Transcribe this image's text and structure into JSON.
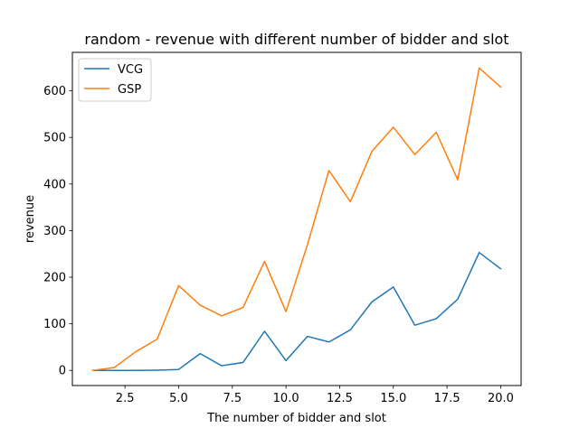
{
  "chart_data": {
    "type": "line",
    "title": "random - revenue with different number of bidder and slot",
    "xlabel": "The number of bidder and slot",
    "ylabel": "revenue",
    "x": [
      1,
      2,
      3,
      4,
      5,
      6,
      7,
      8,
      9,
      10,
      11,
      12,
      13,
      14,
      15,
      16,
      17,
      18,
      19,
      20
    ],
    "xlim": [
      0.05,
      20.95
    ],
    "ylim": [
      -32.5,
      682.5
    ],
    "xticks": [
      2.5,
      5.0,
      7.5,
      10.0,
      12.5,
      15.0,
      17.5,
      20.0
    ],
    "xtick_labels": [
      "2.5",
      "5.0",
      "7.5",
      "10.0",
      "12.5",
      "15.0",
      "17.5",
      "20.0"
    ],
    "yticks": [
      0,
      100,
      200,
      300,
      400,
      500,
      600
    ],
    "ytick_labels": [
      "0",
      "100",
      "200",
      "300",
      "400",
      "500",
      "600"
    ],
    "grid": false,
    "legend_position": "upper left",
    "series": [
      {
        "name": "VCG",
        "color": "#1f77b4",
        "values": [
          0,
          0,
          0,
          0.5,
          2,
          36,
          10,
          17,
          84,
          21,
          73,
          61,
          87,
          147,
          179,
          97,
          111,
          153,
          253,
          218
        ]
      },
      {
        "name": "GSP",
        "color": "#ff7f0e",
        "values": [
          0,
          6,
          40,
          67,
          182,
          140,
          117,
          135,
          234,
          126,
          270,
          429,
          362,
          470,
          522,
          463,
          511,
          409,
          649,
          608
        ]
      }
    ]
  }
}
